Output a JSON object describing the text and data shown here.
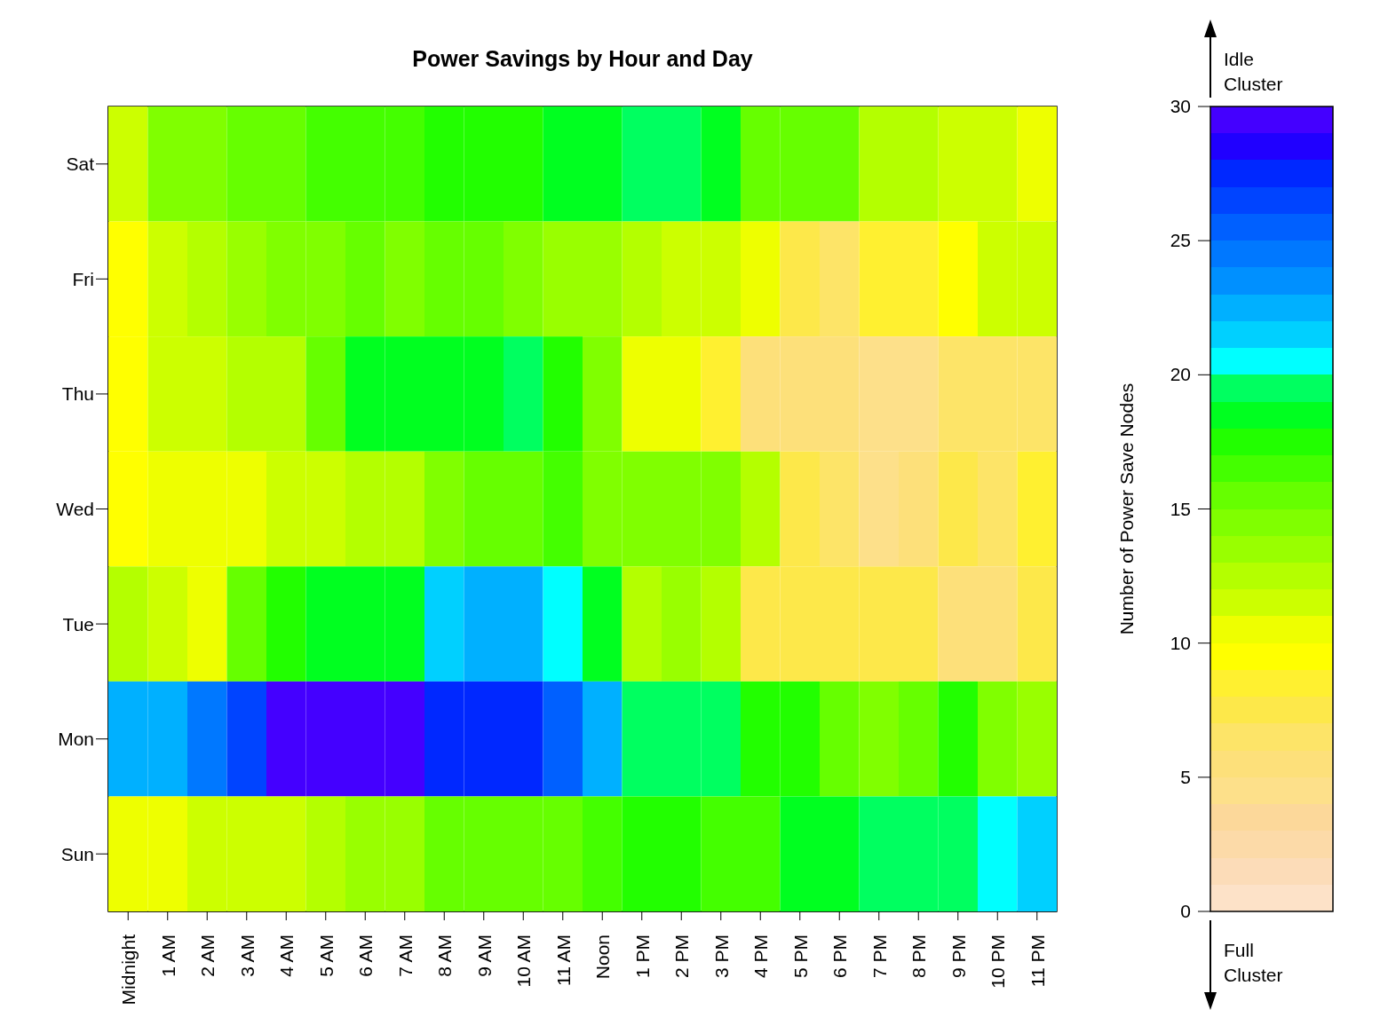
{
  "chart_data": {
    "type": "heatmap",
    "title": "Power Savings by Hour and Day",
    "clabel": "Number of Power Save Nodes",
    "categories": [
      "Midnight",
      "1 AM",
      "2 AM",
      "3 AM",
      "4 AM",
      "5 AM",
      "6 AM",
      "7 AM",
      "8 AM",
      "9 AM",
      "10 AM",
      "11 AM",
      "Noon",
      "1 PM",
      "2 PM",
      "3 PM",
      "4 PM",
      "5 PM",
      "6 PM",
      "7 PM",
      "8 PM",
      "9 PM",
      "10 PM",
      "11 PM"
    ],
    "y_categories": [
      "Sat",
      "Fri",
      "Thu",
      "Wed",
      "Tue",
      "Mon",
      "Sun"
    ],
    "cells": [
      [
        11.5,
        14,
        14.5,
        15.5,
        15.5,
        16.5,
        16.5,
        16.5,
        17.5,
        17.5,
        17.5,
        18.5,
        18.5,
        19.5,
        19.5,
        18,
        15.5,
        15.5,
        15.5,
        12.5,
        12.5,
        11.5,
        11.5,
        10.5
      ],
      [
        9.5,
        11.5,
        12.5,
        13.5,
        14.5,
        14.5,
        15.5,
        14.5,
        15.5,
        15.5,
        14.5,
        13.5,
        13.5,
        12,
        11.5,
        11.5,
        10.5,
        7,
        6,
        8,
        8,
        9.5,
        11,
        11
      ],
      [
        9.5,
        11.5,
        11.5,
        12.5,
        12.5,
        15.5,
        18,
        18.5,
        18.5,
        18,
        19,
        17,
        14,
        10.5,
        10.5,
        8,
        5.5,
        5.5,
        5.5,
        4,
        4,
        6,
        6,
        6
      ],
      [
        9.5,
        10.5,
        10.5,
        10.5,
        11,
        11.5,
        12.5,
        12.5,
        14,
        15,
        15,
        16.5,
        14.5,
        14.5,
        14.5,
        14.5,
        12.5,
        7,
        6,
        4,
        5.5,
        7,
        6,
        8
      ],
      [
        12.5,
        11.5,
        10.5,
        15,
        17,
        18,
        18,
        18.5,
        21.5,
        22,
        22,
        20.5,
        18,
        12,
        13.5,
        12,
        7,
        7,
        7,
        7,
        7,
        5.5,
        5.5,
        7
      ],
      [
        22.5,
        22.5,
        24,
        26.5,
        29,
        29,
        29,
        29,
        27,
        27,
        27,
        25,
        22,
        19.5,
        19.5,
        19,
        17.5,
        17.5,
        15,
        14.5,
        15,
        17.5,
        14.5,
        13.5
      ],
      [
        10.5,
        10.5,
        11,
        11,
        11,
        12,
        13.5,
        13.5,
        15,
        15.5,
        15.5,
        15,
        16,
        17.5,
        17.5,
        16.5,
        16.5,
        18,
        18.5,
        19.5,
        19.5,
        19.5,
        20.5,
        21.5
      ]
    ],
    "clim": [
      0,
      30
    ],
    "cticks": [
      0,
      5,
      10,
      15,
      20,
      25,
      30
    ],
    "annotations": [
      "Idle Cluster",
      "Full Cluster"
    ]
  }
}
